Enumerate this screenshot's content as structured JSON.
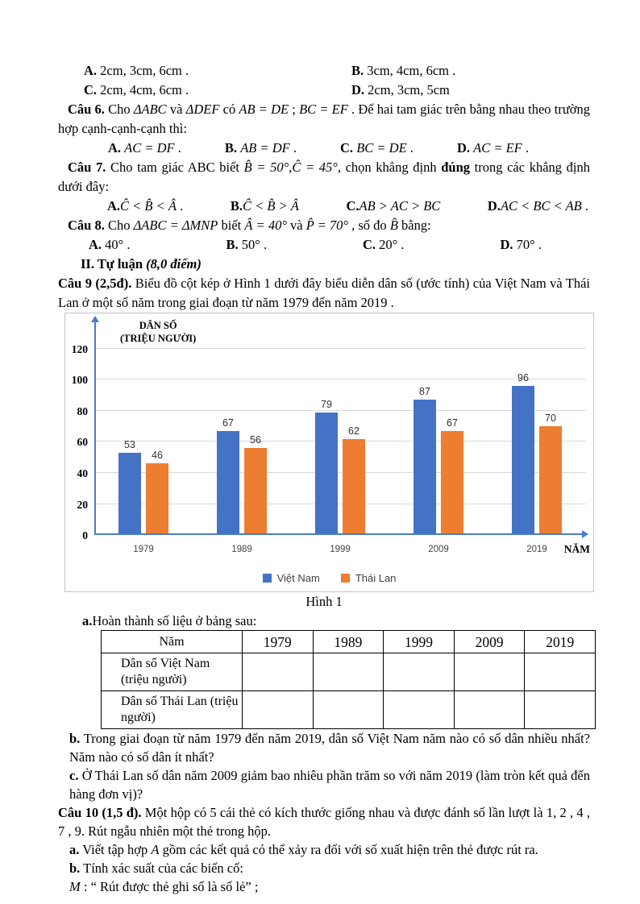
{
  "doc": {
    "r1a": [
      {
        "t": "A.",
        "b": 1
      },
      {
        "t": " 2cm, 3cm, 6cm ."
      }
    ],
    "r1b": [
      {
        "t": "B.",
        "b": 1
      },
      {
        "t": " 3cm, 4cm, 6cm ."
      }
    ],
    "r2c": [
      {
        "t": "C.",
        "b": 1
      },
      {
        "t": " 2cm, 4cm, 6cm ."
      }
    ],
    "r2d": [
      {
        "t": "D.",
        "b": 1
      },
      {
        "t": " 2cm, 3cm, 5cm"
      }
    ],
    "q6": [
      {
        "t": "Câu 6.",
        "b": 1
      },
      {
        "t": " Cho "
      },
      {
        "t": "ΔABC",
        "i": 1
      },
      {
        "t": " và "
      },
      {
        "t": "ΔDEF",
        "i": 1
      },
      {
        "t": " có "
      },
      {
        "t": "AB = DE",
        "i": 1
      },
      {
        "t": " ; "
      },
      {
        "t": "BC = EF",
        "i": 1
      },
      {
        "t": " . Để hai tam giác trên bằng nhau theo trường hợp cạnh-cạnh-cạnh thì:"
      }
    ],
    "q6a": [
      {
        "t": "A.",
        "b": 1
      },
      {
        "t": " "
      },
      {
        "t": "AC = DF",
        "i": 1
      },
      {
        "t": " ."
      }
    ],
    "q6b": [
      {
        "t": "B.",
        "b": 1
      },
      {
        "t": " "
      },
      {
        "t": "AB = DF",
        "i": 1
      },
      {
        "t": " ."
      }
    ],
    "q6c": [
      {
        "t": "C.",
        "b": 1
      },
      {
        "t": " "
      },
      {
        "t": "BC = DE",
        "i": 1
      },
      {
        "t": " ."
      }
    ],
    "q6d": [
      {
        "t": "D.",
        "b": 1
      },
      {
        "t": " "
      },
      {
        "t": "AC = EF",
        "i": 1
      },
      {
        "t": " ."
      }
    ],
    "q7": [
      {
        "t": "Câu 7.",
        "b": 1
      },
      {
        "t": " Cho tam giác ABC biết "
      },
      {
        "t": "B̂ = 50°,Ĉ = 45°",
        "i": 1
      },
      {
        "t": ", chọn khẳng định "
      },
      {
        "t": "đúng",
        "b": 1
      },
      {
        "t": " trong các khẳng định dưới đây:"
      }
    ],
    "q7a": [
      {
        "t": "A.",
        "b": 1
      },
      {
        "t": "Ĉ < B̂ < Â",
        "i": 1
      },
      {
        "t": " ."
      }
    ],
    "q7b": [
      {
        "t": "B.",
        "b": 1
      },
      {
        "t": "Ĉ < B̂ > Â",
        "i": 1
      }
    ],
    "q7c": [
      {
        "t": "C.",
        "b": 1
      },
      {
        "t": "AB > AC > BC",
        "i": 1
      }
    ],
    "q7d": [
      {
        "t": "D.",
        "b": 1
      },
      {
        "t": "AC < BC < AB",
        "i": 1
      },
      {
        "t": " ."
      }
    ],
    "q8": [
      {
        "t": "Câu 8.",
        "b": 1
      },
      {
        "t": " Cho "
      },
      {
        "t": "ΔABC = ΔMNP",
        "i": 1
      },
      {
        "t": " biết "
      },
      {
        "t": "Â = 40°",
        "i": 1
      },
      {
        "t": " và "
      },
      {
        "t": "P̂ = 70°",
        "i": 1
      },
      {
        "t": " , số đo "
      },
      {
        "t": "B̂",
        "i": 1
      },
      {
        "t": " bằng:"
      }
    ],
    "q8a": [
      {
        "t": "A.",
        "b": 1
      },
      {
        "t": " 40° ."
      }
    ],
    "q8b": [
      {
        "t": "B.",
        "b": 1
      },
      {
        "t": " 50° ."
      }
    ],
    "q8c": [
      {
        "t": "C.",
        "b": 1
      },
      {
        "t": " 20° ."
      }
    ],
    "q8d": [
      {
        "t": "D.",
        "b": 1
      },
      {
        "t": " 70° ."
      }
    ],
    "sec2": [
      {
        "t": "II. Tự luận ",
        "b": 1
      },
      {
        "t": "(8,0 điểm)",
        "b": 1,
        "i": 1
      }
    ],
    "q9": [
      {
        "t": "Câu 9 (2,5đ).",
        "b": 1
      },
      {
        "t": " Biểu đồ cột kép ở Hình 1 dưới đây biểu diễn dân số (ước tính) của Việt Nam và Thái Lan ở một số năm trong giai đoạn từ năm 1979 đến năm 2019 ."
      }
    ],
    "fig_caption": "Hình 1",
    "a_line": [
      {
        "t": "a.",
        "b": 1
      },
      {
        "t": "Hoàn thành số liệu ở bảng sau:"
      }
    ],
    "b_para": [
      {
        "t": "b.",
        "b": 1
      },
      {
        "t": " Trong giai đoạn từ năm 1979 đến năm 2019, dân số Việt Nam năm nào có số dân nhiều nhất? Năm nào có số dân ít nhất?"
      }
    ],
    "c_para": [
      {
        "t": "c.",
        "b": 1
      },
      {
        "t": " Ở Thái Lan số dân năm 2009 giảm bao nhiêu phần trăm so với năm 2019 (làm tròn kết quả đến hàng đơn vị)?"
      }
    ],
    "q10": [
      {
        "t": "Câu 10 (1,5 đ).",
        "b": 1
      },
      {
        "t": " Một hộp có 5 cái thẻ có kích thước giống nhau và được đánh số lần lượt là 1, 2 , 4 , 7 , 9. Rút ngẫu nhiên một thẻ trong hộp."
      }
    ],
    "q10a": [
      {
        "t": "a.",
        "b": 1
      },
      {
        "t": " Viết tập hợp "
      },
      {
        "t": "A",
        "i": 1
      },
      {
        "t": " gồm các kết quả có thể xảy ra đối với số xuất hiện trên thẻ được rút ra."
      }
    ],
    "q10b": [
      {
        "t": "b.",
        "b": 1
      },
      {
        "t": " Tính xác suất của các biến cố:"
      }
    ],
    "m_line": [
      {
        "t": "M",
        "i": 1
      },
      {
        "t": " : “ Rút được thẻ ghi số là số lẻ” ;"
      }
    ]
  },
  "table": {
    "header": [
      "Năm",
      "1979",
      "1989",
      "1999",
      "2009",
      "2019"
    ],
    "rows": [
      {
        "label": "Dân số Việt Nam (triệu người)",
        "cells": [
          "",
          "",
          "",
          "",
          ""
        ]
      },
      {
        "label": "Dân số Thái Lan (triệu người)",
        "cells": [
          "",
          "",
          "",
          "",
          ""
        ]
      }
    ]
  },
  "chart_data": {
    "type": "bar",
    "title": "Hình 1",
    "ylabel_line1": "DÂN SỐ",
    "ylabel_line2": "(TRIỆU NGƯỜI)",
    "xlabel": "NĂM",
    "categories": [
      "1979",
      "1989",
      "1999",
      "2009",
      "2019"
    ],
    "series": [
      {
        "name": "Việt Nam",
        "color": "#4472C4",
        "values": [
          53,
          67,
          79,
          87,
          96
        ]
      },
      {
        "name": "Thái Lan",
        "color": "#ED7D31",
        "values": [
          46,
          56,
          62,
          67,
          70
        ]
      }
    ],
    "yticks": [
      0,
      20,
      40,
      60,
      80,
      100,
      120
    ],
    "ylim": [
      0,
      120
    ],
    "grid": true,
    "legend_position": "bottom",
    "axis_color": "#4a7cc7",
    "gridline_color": "#d9d9d9"
  }
}
